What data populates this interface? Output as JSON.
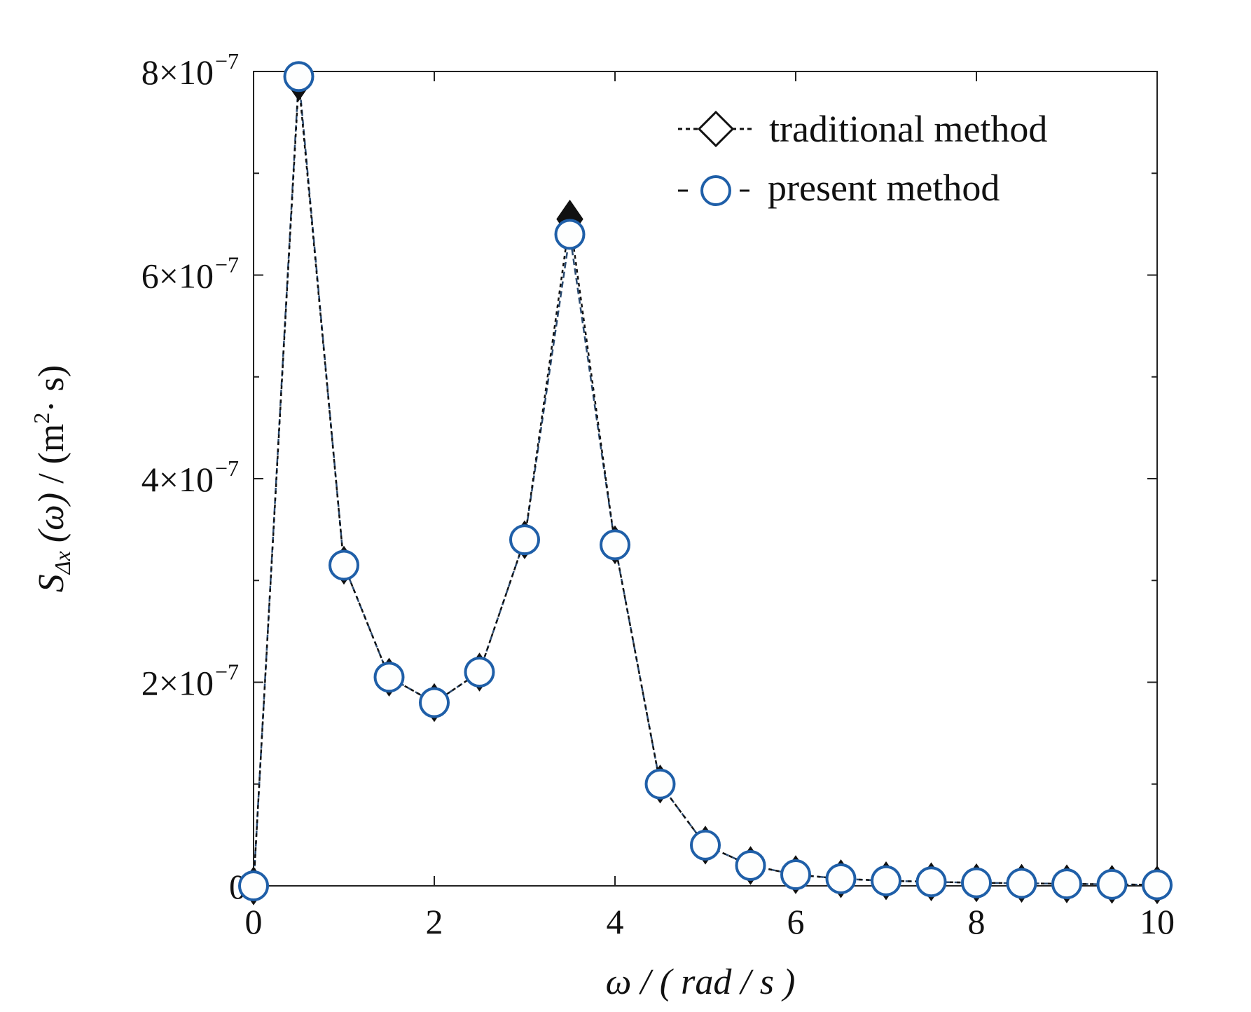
{
  "chart_data": {
    "type": "line",
    "xlabel": "ω / ( rad / s )",
    "ylabel_parts": {
      "symbol": "S",
      "subscript": "Δx",
      "argument": "(ω)",
      "unit": " / (m",
      "unit_exp": "2",
      "unit_tail": "· s)"
    },
    "xlim": [
      0,
      10
    ],
    "ylim": [
      0,
      8e-07
    ],
    "x_ticks": [
      0,
      2,
      4,
      6,
      8,
      10
    ],
    "x_tick_labels": [
      "0",
      "2",
      "4",
      "6",
      "8",
      "10"
    ],
    "y_ticks": [
      0,
      2e-07,
      4e-07,
      6e-07,
      8e-07
    ],
    "y_tick_labels": [
      {
        "base": "0",
        "exp": ""
      },
      {
        "base": "2×10",
        "exp": "−7"
      },
      {
        "base": "4×10",
        "exp": "−7"
      },
      {
        "base": "6×10",
        "exp": "−7"
      },
      {
        "base": "8×10",
        "exp": "−7"
      }
    ],
    "y_minor_ticks": [
      1e-07,
      3e-07,
      5e-07,
      7e-07
    ],
    "grid": false,
    "legend_position": "top-right",
    "series": [
      {
        "name": "traditional method",
        "marker": "diamond",
        "line": "dotted",
        "color": "#111111",
        "x": [
          0,
          0.5,
          1.0,
          1.5,
          2.0,
          2.5,
          3.0,
          3.5,
          4.0,
          4.5,
          5.0,
          5.5,
          6.0,
          6.5,
          7.0,
          7.5,
          8.0,
          8.5,
          9.0,
          9.5,
          10.0
        ],
        "y": [
          0,
          7.9e-07,
          3.15e-07,
          2.05e-07,
          1.8e-07,
          2.1e-07,
          3.4e-07,
          6.55e-07,
          3.35e-07,
          1e-07,
          4e-08,
          2e-08,
          1.1e-08,
          7e-09,
          5e-09,
          4e-09,
          3e-09,
          2.5e-09,
          2e-09,
          1.5e-09,
          1e-09
        ]
      },
      {
        "name": "present method",
        "marker": "circle",
        "line": "dashed",
        "color": "#1f5fa8",
        "x": [
          0,
          0.5,
          1.0,
          1.5,
          2.0,
          2.5,
          3.0,
          3.5,
          4.0,
          4.5,
          5.0,
          5.5,
          6.0,
          6.5,
          7.0,
          7.5,
          8.0,
          8.5,
          9.0,
          9.5,
          10.0
        ],
        "y": [
          0,
          7.95e-07,
          3.15e-07,
          2.05e-07,
          1.8e-07,
          2.1e-07,
          3.4e-07,
          6.4e-07,
          3.35e-07,
          1e-07,
          4e-08,
          2e-08,
          1.1e-08,
          7e-09,
          5e-09,
          4e-09,
          3e-09,
          2.5e-09,
          2e-09,
          1.5e-09,
          1e-09
        ]
      }
    ]
  }
}
